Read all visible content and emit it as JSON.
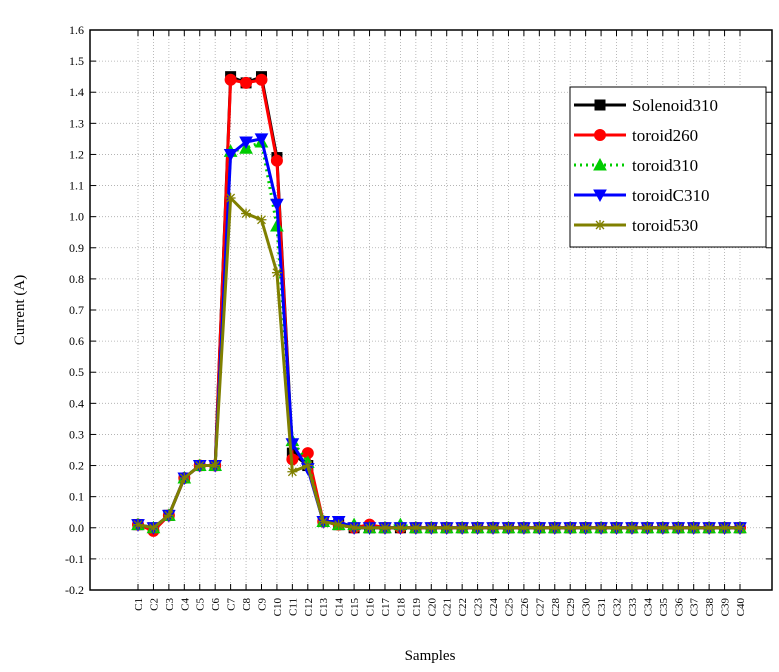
{
  "chart_data": {
    "type": "line",
    "x_label": "Samples",
    "y_label": "Current (A)",
    "categories": [
      "C1",
      "C2",
      "C3",
      "C4",
      "C5",
      "C6",
      "C7",
      "C8",
      "C9",
      "C10",
      "C11",
      "C12",
      "C13",
      "C14",
      "C15",
      "C16",
      "C17",
      "C18",
      "C19",
      "C20",
      "C21",
      "C22",
      "C23",
      "C24",
      "C25",
      "C26",
      "C27",
      "C28",
      "C29",
      "C30",
      "C31",
      "C32",
      "C33",
      "C34",
      "C35",
      "C36",
      "C37",
      "C38",
      "C39",
      "C40"
    ],
    "series": [
      {
        "name": "Solenoid310",
        "color": "#000000",
        "marker": "square",
        "dash": "solid",
        "values": [
          0.01,
          0.0,
          0.04,
          0.16,
          0.2,
          0.2,
          1.45,
          1.43,
          1.45,
          1.19,
          0.24,
          0.2,
          0.02,
          0.01,
          0,
          0,
          0,
          0,
          0,
          0,
          0,
          0,
          0,
          0,
          0,
          0,
          0,
          0,
          0,
          0,
          0,
          0,
          0,
          0,
          0,
          0,
          0,
          0,
          0,
          0
        ]
      },
      {
        "name": "toroid260",
        "color": "#ff0000",
        "marker": "circle",
        "dash": "solid",
        "values": [
          0.01,
          -0.01,
          0.04,
          0.16,
          0.2,
          0.2,
          1.44,
          1.43,
          1.44,
          1.18,
          0.22,
          0.24,
          0.02,
          0.01,
          0,
          0.01,
          0,
          0,
          0,
          0,
          0,
          0,
          0,
          0,
          0,
          0,
          0,
          0,
          0,
          0,
          0,
          0,
          0,
          0,
          0,
          0,
          0,
          0,
          0,
          0
        ]
      },
      {
        "name": "toroid310",
        "color": "#00cc00",
        "marker": "triangle-up",
        "dash": "dotted",
        "values": [
          0.01,
          0.0,
          0.04,
          0.16,
          0.2,
          0.2,
          1.21,
          1.22,
          1.24,
          0.97,
          0.28,
          0.21,
          0.02,
          0.01,
          0.01,
          0,
          0,
          0.01,
          0,
          0,
          0,
          0,
          0,
          0,
          0,
          0,
          0,
          0,
          0,
          0,
          0,
          0,
          0,
          0,
          0,
          0,
          0,
          0,
          0,
          0
        ]
      },
      {
        "name": "toroidC310",
        "color": "#0000ff",
        "marker": "triangle-down",
        "dash": "solid",
        "values": [
          0.01,
          0.0,
          0.04,
          0.16,
          0.2,
          0.2,
          1.2,
          1.24,
          1.25,
          1.04,
          0.27,
          0.19,
          0.02,
          0.02,
          0,
          0,
          0,
          0,
          0,
          0,
          0,
          0,
          0,
          0,
          0,
          0,
          0,
          0,
          0,
          0,
          0,
          0,
          0,
          0,
          0,
          0,
          0,
          0,
          0,
          0
        ]
      },
      {
        "name": "toroid530",
        "color": "#808000",
        "marker": "star",
        "dash": "solid",
        "values": [
          0.01,
          0.0,
          0.04,
          0.16,
          0.2,
          0.2,
          1.06,
          1.01,
          0.99,
          0.82,
          0.18,
          0.2,
          0.02,
          0.01,
          0,
          0,
          0,
          0,
          0,
          0,
          0,
          0,
          0,
          0,
          0,
          0,
          0,
          0,
          0,
          0,
          0,
          0,
          0,
          0,
          0,
          0,
          0,
          0,
          0,
          0
        ]
      }
    ],
    "ylim": [
      -0.2,
      1.6
    ],
    "yticks": [
      -0.2,
      -0.1,
      {
        "value": 0,
        "label": "0.0"
      },
      0.1,
      0.2,
      0.3,
      0.4,
      0.5,
      0.6,
      0.7,
      0.8,
      0.9,
      {
        "value": 1,
        "label": "1.0"
      },
      1.1,
      1.2,
      1.3,
      1.4,
      1.5,
      1.6
    ],
    "grid": true,
    "legend": "top-right"
  }
}
